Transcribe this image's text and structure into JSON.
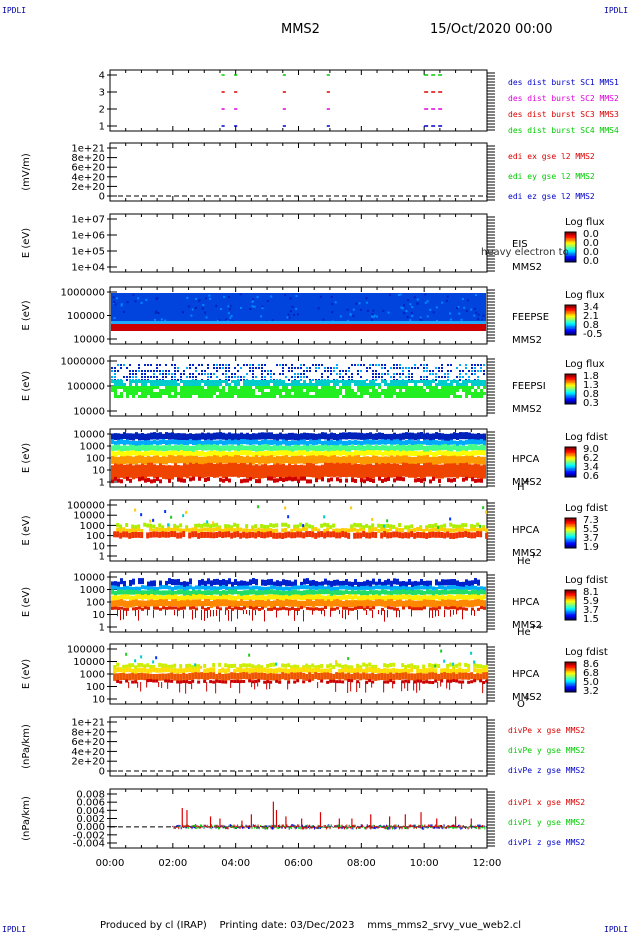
{
  "corner_tag": "IPDLI",
  "header": {
    "spacecraft": "MMS2",
    "datetime": "15/Oct/2020 00:00"
  },
  "footer": {
    "produced_by": "Produced by cl (IRAP)",
    "printing_date": "Printing date: 03/Dec/2023",
    "script": "mms_mms2_srvy_vue_web2.cl"
  },
  "time_axis": {
    "labels": [
      "00:00",
      "02:00",
      "04:00",
      "06:00",
      "08:00",
      "10:00",
      "12:00"
    ],
    "range_hours": [
      0,
      12
    ]
  },
  "colors": {
    "blue": "#0000cc",
    "red": "#dd0000",
    "magenta": "#dd00dd",
    "green": "#00cc00"
  },
  "chart_data": [
    {
      "type": "scatter",
      "id": "burst",
      "y_ticks": [
        "1",
        "2",
        "3",
        "4"
      ],
      "ylim": [
        0.5,
        4.5
      ],
      "legend": [
        {
          "text": "des dist burst SC1 MMS1",
          "color": "#0000cc"
        },
        {
          "text": "des dist burst SC2 MMS2",
          "color": "#dd00dd"
        },
        {
          "text": "des dist burst SC3 MMS3",
          "color": "#dd0000"
        },
        {
          "text": "des dist burst SC4 MMS4",
          "color": "#00cc00"
        }
      ],
      "series": [
        {
          "level": 4,
          "color": "#00cc00",
          "intervals": [
            [
              3.55,
              3.65
            ],
            [
              3.95,
              4.05
            ],
            [
              5.5,
              5.6
            ],
            [
              6.9,
              7.0
            ],
            [
              10.0,
              10.6
            ]
          ]
        },
        {
          "level": 3,
          "color": "#dd0000",
          "intervals": [
            [
              3.55,
              3.65
            ],
            [
              3.95,
              4.05
            ],
            [
              5.5,
              5.6
            ],
            [
              6.9,
              7.0
            ],
            [
              10.0,
              10.6
            ]
          ]
        },
        {
          "level": 2,
          "color": "#dd00dd",
          "intervals": [
            [
              3.55,
              3.65
            ],
            [
              3.95,
              4.05
            ],
            [
              5.5,
              5.6
            ],
            [
              6.9,
              7.0
            ],
            [
              10.0,
              10.6
            ]
          ]
        },
        {
          "level": 1,
          "color": "#0000cc",
          "intervals": [
            [
              3.55,
              3.65
            ],
            [
              3.95,
              4.05
            ],
            [
              5.5,
              5.6
            ],
            [
              6.9,
              7.0
            ],
            [
              10.0,
              10.6
            ]
          ]
        }
      ]
    },
    {
      "type": "line",
      "id": "edi",
      "ylabel": "(mV/m)",
      "y_ticks": [
        "1e+21",
        "8e+20",
        "6e+20",
        "4e+20",
        "2e+20",
        "0"
      ],
      "ylim": [
        0,
        1e+21
      ],
      "legend": [
        {
          "text": "edi ex gse l2 MMS2",
          "color": "#dd0000"
        },
        {
          "text": "edi ey gse l2 MMS2",
          "color": "#00cc00"
        },
        {
          "text": "edi ez gse l2 MMS2",
          "color": "#0000cc"
        }
      ],
      "zero_line": true
    },
    {
      "type": "heatmap",
      "id": "eis",
      "ylabel": "E (eV)",
      "y_ticks": [
        "1e+07",
        "1e+06",
        "1e+05",
        "1e+04"
      ],
      "ylim": [
        10000,
        10000000
      ],
      "label_lines": [
        "EIS",
        "MMS2"
      ],
      "overlay_text": "heavy electron to",
      "colorbar": {
        "title": "Log flux",
        "ticks": [
          "0.0",
          "0.0",
          "0.0",
          "0.0"
        ]
      }
    },
    {
      "type": "heatmap",
      "id": "feepse",
      "ylabel": "E (eV)",
      "y_ticks": [
        "1000000",
        "100000",
        "10000"
      ],
      "ylim": [
        10000,
        1000000
      ],
      "label_lines": [
        "FEEPSE",
        "MMS2"
      ],
      "colorbar": {
        "title": "Log flux",
        "ticks": [
          "3.4",
          "2.1",
          "0.8",
          "-0.5"
        ]
      }
    },
    {
      "type": "heatmap",
      "id": "feepsi",
      "ylabel": "E (eV)",
      "y_ticks": [
        "1000000",
        "100000",
        "10000"
      ],
      "ylim": [
        10000,
        1000000
      ],
      "label_lines": [
        "FEEPSI",
        "MMS2"
      ],
      "colorbar": {
        "title": "Log flux",
        "ticks": [
          "1.8",
          "1.3",
          "0.8",
          "0.3"
        ]
      }
    },
    {
      "type": "heatmap",
      "id": "hpca-h",
      "ylabel": "E (eV)",
      "y_ticks": [
        "10000",
        "1000",
        "100",
        "10",
        "1"
      ],
      "ylim": [
        1,
        30000
      ],
      "label_lines": [
        "HPCA",
        "MMS2"
      ],
      "species": "H",
      "species_sup": "+",
      "colorbar": {
        "title": "Log fdist",
        "ticks": [
          "9.0",
          "6.2",
          "3.4",
          "0.6"
        ]
      }
    },
    {
      "type": "heatmap",
      "id": "hpca-he",
      "ylabel": "E (eV)",
      "y_ticks": [
        "100000",
        "10000",
        "1000",
        "100",
        "10",
        "1"
      ],
      "ylim": [
        1,
        100000
      ],
      "label_lines": [
        "HPCA",
        "MMS2"
      ],
      "species": "He",
      "species_sup": "+",
      "colorbar": {
        "title": "Log fdist",
        "ticks": [
          "7.3",
          "5.5",
          "3.7",
          "1.9"
        ]
      }
    },
    {
      "type": "heatmap",
      "id": "hpca-hepp",
      "ylabel": "E (eV)",
      "y_ticks": [
        "10000",
        "1000",
        "100",
        "10",
        "1"
      ],
      "ylim": [
        1,
        10000
      ],
      "label_lines": [
        "HPCA",
        "MMS2"
      ],
      "species": "He",
      "species_sup": "++",
      "colorbar": {
        "title": "Log fdist",
        "ticks": [
          "8.1",
          "5.9",
          "3.7",
          "1.5"
        ]
      }
    },
    {
      "type": "heatmap",
      "id": "hpca-o",
      "ylabel": "E (eV)",
      "y_ticks": [
        "100000",
        "10000",
        "1000",
        "100",
        "10"
      ],
      "ylim": [
        10,
        100000
      ],
      "label_lines": [
        "HPCA",
        "MMS2"
      ],
      "species": "O",
      "species_sup": "+",
      "colorbar": {
        "title": "Log fdist",
        "ticks": [
          "8.6",
          "6.8",
          "5.0",
          "3.2"
        ]
      }
    },
    {
      "type": "line",
      "id": "divpe",
      "ylabel": "(nPa/km)",
      "y_ticks": [
        "1e+21",
        "8e+20",
        "6e+20",
        "4e+20",
        "2e+20",
        "0"
      ],
      "ylim": [
        0,
        1e+21
      ],
      "legend": [
        {
          "text": "divPe x gse MMS2",
          "color": "#dd0000"
        },
        {
          "text": "divPe y gse MMS2",
          "color": "#00cc00"
        },
        {
          "text": "divPe z gse MMS2",
          "color": "#0000cc"
        }
      ],
      "zero_line": true
    },
    {
      "type": "line",
      "id": "divpi",
      "ylabel": "(nPa/km)",
      "y_ticks": [
        "0.008",
        "0.006",
        "0.004",
        "0.002",
        "0.000",
        "-0.002",
        "-0.004"
      ],
      "ylim": [
        -0.005,
        0.009
      ],
      "legend": [
        {
          "text": "divPi x gse MMS2",
          "color": "#dd0000"
        },
        {
          "text": "divPi y gse MMS2",
          "color": "#00cc00"
        },
        {
          "text": "divPi z gse MMS2",
          "color": "#0000cc"
        }
      ],
      "zero_line": true,
      "data_range_hours": [
        2.0,
        12.0
      ],
      "spikes_x": [
        {
          "t": 2.3,
          "v": 0.0045
        },
        {
          "t": 2.45,
          "v": 0.004
        },
        {
          "t": 3.2,
          "v": 0.0025
        },
        {
          "t": 3.5,
          "v": 0.002
        },
        {
          "t": 4.2,
          "v": 0.0015
        },
        {
          "t": 4.5,
          "v": 0.003
        },
        {
          "t": 5.2,
          "v": 0.006
        },
        {
          "t": 5.3,
          "v": 0.004
        },
        {
          "t": 5.6,
          "v": 0.0025
        },
        {
          "t": 6.1,
          "v": 0.002
        },
        {
          "t": 6.7,
          "v": 0.0035
        },
        {
          "t": 7.3,
          "v": 0.002
        },
        {
          "t": 7.7,
          "v": 0.002
        },
        {
          "t": 8.3,
          "v": 0.003
        },
        {
          "t": 8.9,
          "v": 0.0025
        },
        {
          "t": 9.4,
          "v": 0.003
        },
        {
          "t": 9.9,
          "v": 0.0035
        },
        {
          "t": 10.4,
          "v": 0.002
        },
        {
          "t": 11.0,
          "v": 0.0025
        },
        {
          "t": 11.5,
          "v": 0.002
        }
      ]
    }
  ]
}
